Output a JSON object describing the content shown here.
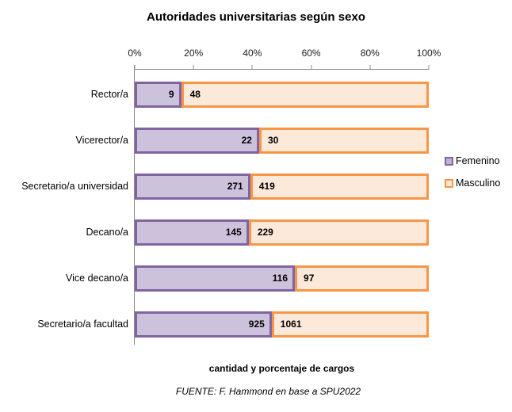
{
  "chart": {
    "title": "Autoridades universitarias según sexo",
    "xlabel": "cantidad y porcentaje de cargos",
    "source": "FUENTE: F. Hammond en base a SPU2022"
  },
  "legend": [
    {
      "label": "Femenino",
      "fill": "#C0B2D4",
      "border": "#8064A2"
    },
    {
      "label": "Masculino",
      "fill": "#FDE9D9",
      "border": "#F79646"
    }
  ],
  "colors": {
    "femenino_fill": "#CCC2DC",
    "femenino_border": "#8064A2",
    "masculino_fill": "#FDE9D9",
    "masculino_border": "#F79646",
    "axis_line": "#8c8c8c"
  },
  "chart_data": {
    "type": "bar",
    "orientation": "horizontal",
    "stacked": "100%",
    "title": "Autoridades universitarias según sexo",
    "xlabel": "cantidad y porcentaje de cargos",
    "source": "FUENTE: F. Hammond en base a SPU2022",
    "categories": [
      "Rector/a",
      "Vicerector/a",
      "Secretario/a universidad",
      "Decano/a",
      "Vice decano/a",
      "Secretario/a facultad"
    ],
    "series": [
      {
        "name": "Femenino",
        "values": [
          9,
          22,
          271,
          145,
          116,
          925
        ],
        "fill": "#CCC2DC",
        "border": "#8064A2"
      },
      {
        "name": "Masculino",
        "values": [
          48,
          30,
          419,
          229,
          97,
          1061
        ],
        "fill": "#FDE9D9",
        "border": "#F79646"
      }
    ],
    "x_ticks": [
      "0%",
      "20%",
      "40%",
      "60%",
      "80%",
      "100%"
    ],
    "xlim": [
      0,
      100
    ],
    "grid": false,
    "legend_position": "right",
    "data_labels": true
  }
}
